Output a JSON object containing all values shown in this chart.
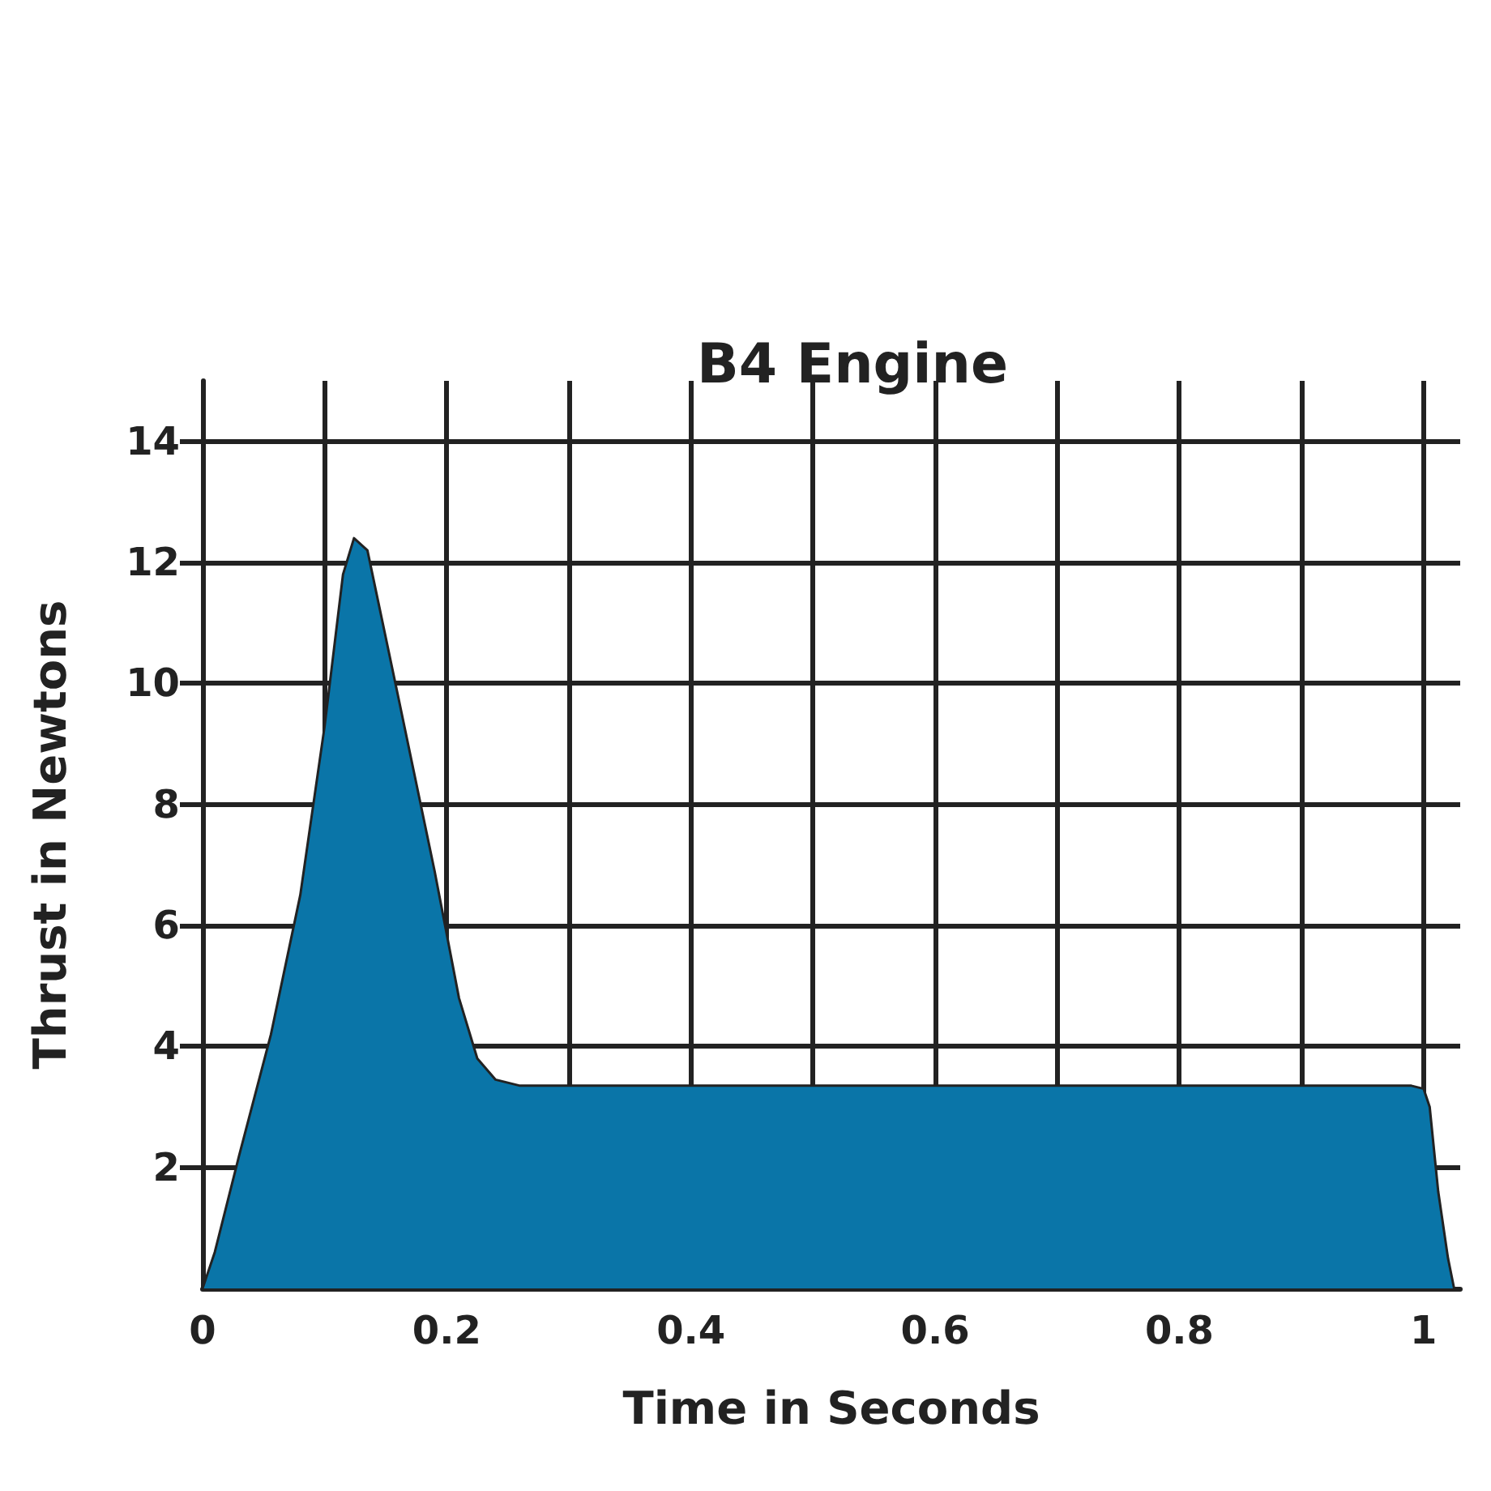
{
  "chart_data": {
    "type": "area",
    "title": "B4 Engine",
    "xlabel": "Time in Seconds",
    "ylabel": "Thrust in Newtons",
    "x": [
      0,
      0.01,
      0.03,
      0.056,
      0.08,
      0.1,
      0.115,
      0.124,
      0.135,
      0.16,
      0.19,
      0.21,
      0.225,
      0.24,
      0.26,
      0.99,
      1.0,
      1.005,
      1.012,
      1.02,
      1.025
    ],
    "series": [
      {
        "color": "#0a75a8",
        "values": [
          0,
          0.6,
          2.2,
          4.2,
          6.5,
          9.3,
          11.8,
          12.4,
          12.2,
          9.8,
          6.9,
          4.8,
          3.8,
          3.45,
          3.35,
          3.35,
          3.3,
          3.0,
          1.6,
          0.5,
          0
        ]
      }
    ],
    "xlim": [
      0,
      1.03
    ],
    "ylim": [
      0,
      15
    ],
    "xticks": [
      0,
      {
        "value": 0.1,
        "label": null
      },
      0.2,
      {
        "value": 0.3,
        "label": null
      },
      0.4,
      {
        "value": 0.5,
        "label": null
      },
      0.6,
      {
        "value": 0.7,
        "label": null
      },
      0.8,
      {
        "value": 0.9,
        "label": null
      },
      1
    ],
    "yticks": [
      2,
      4,
      6,
      8,
      10,
      12,
      14
    ],
    "grid": true
  }
}
